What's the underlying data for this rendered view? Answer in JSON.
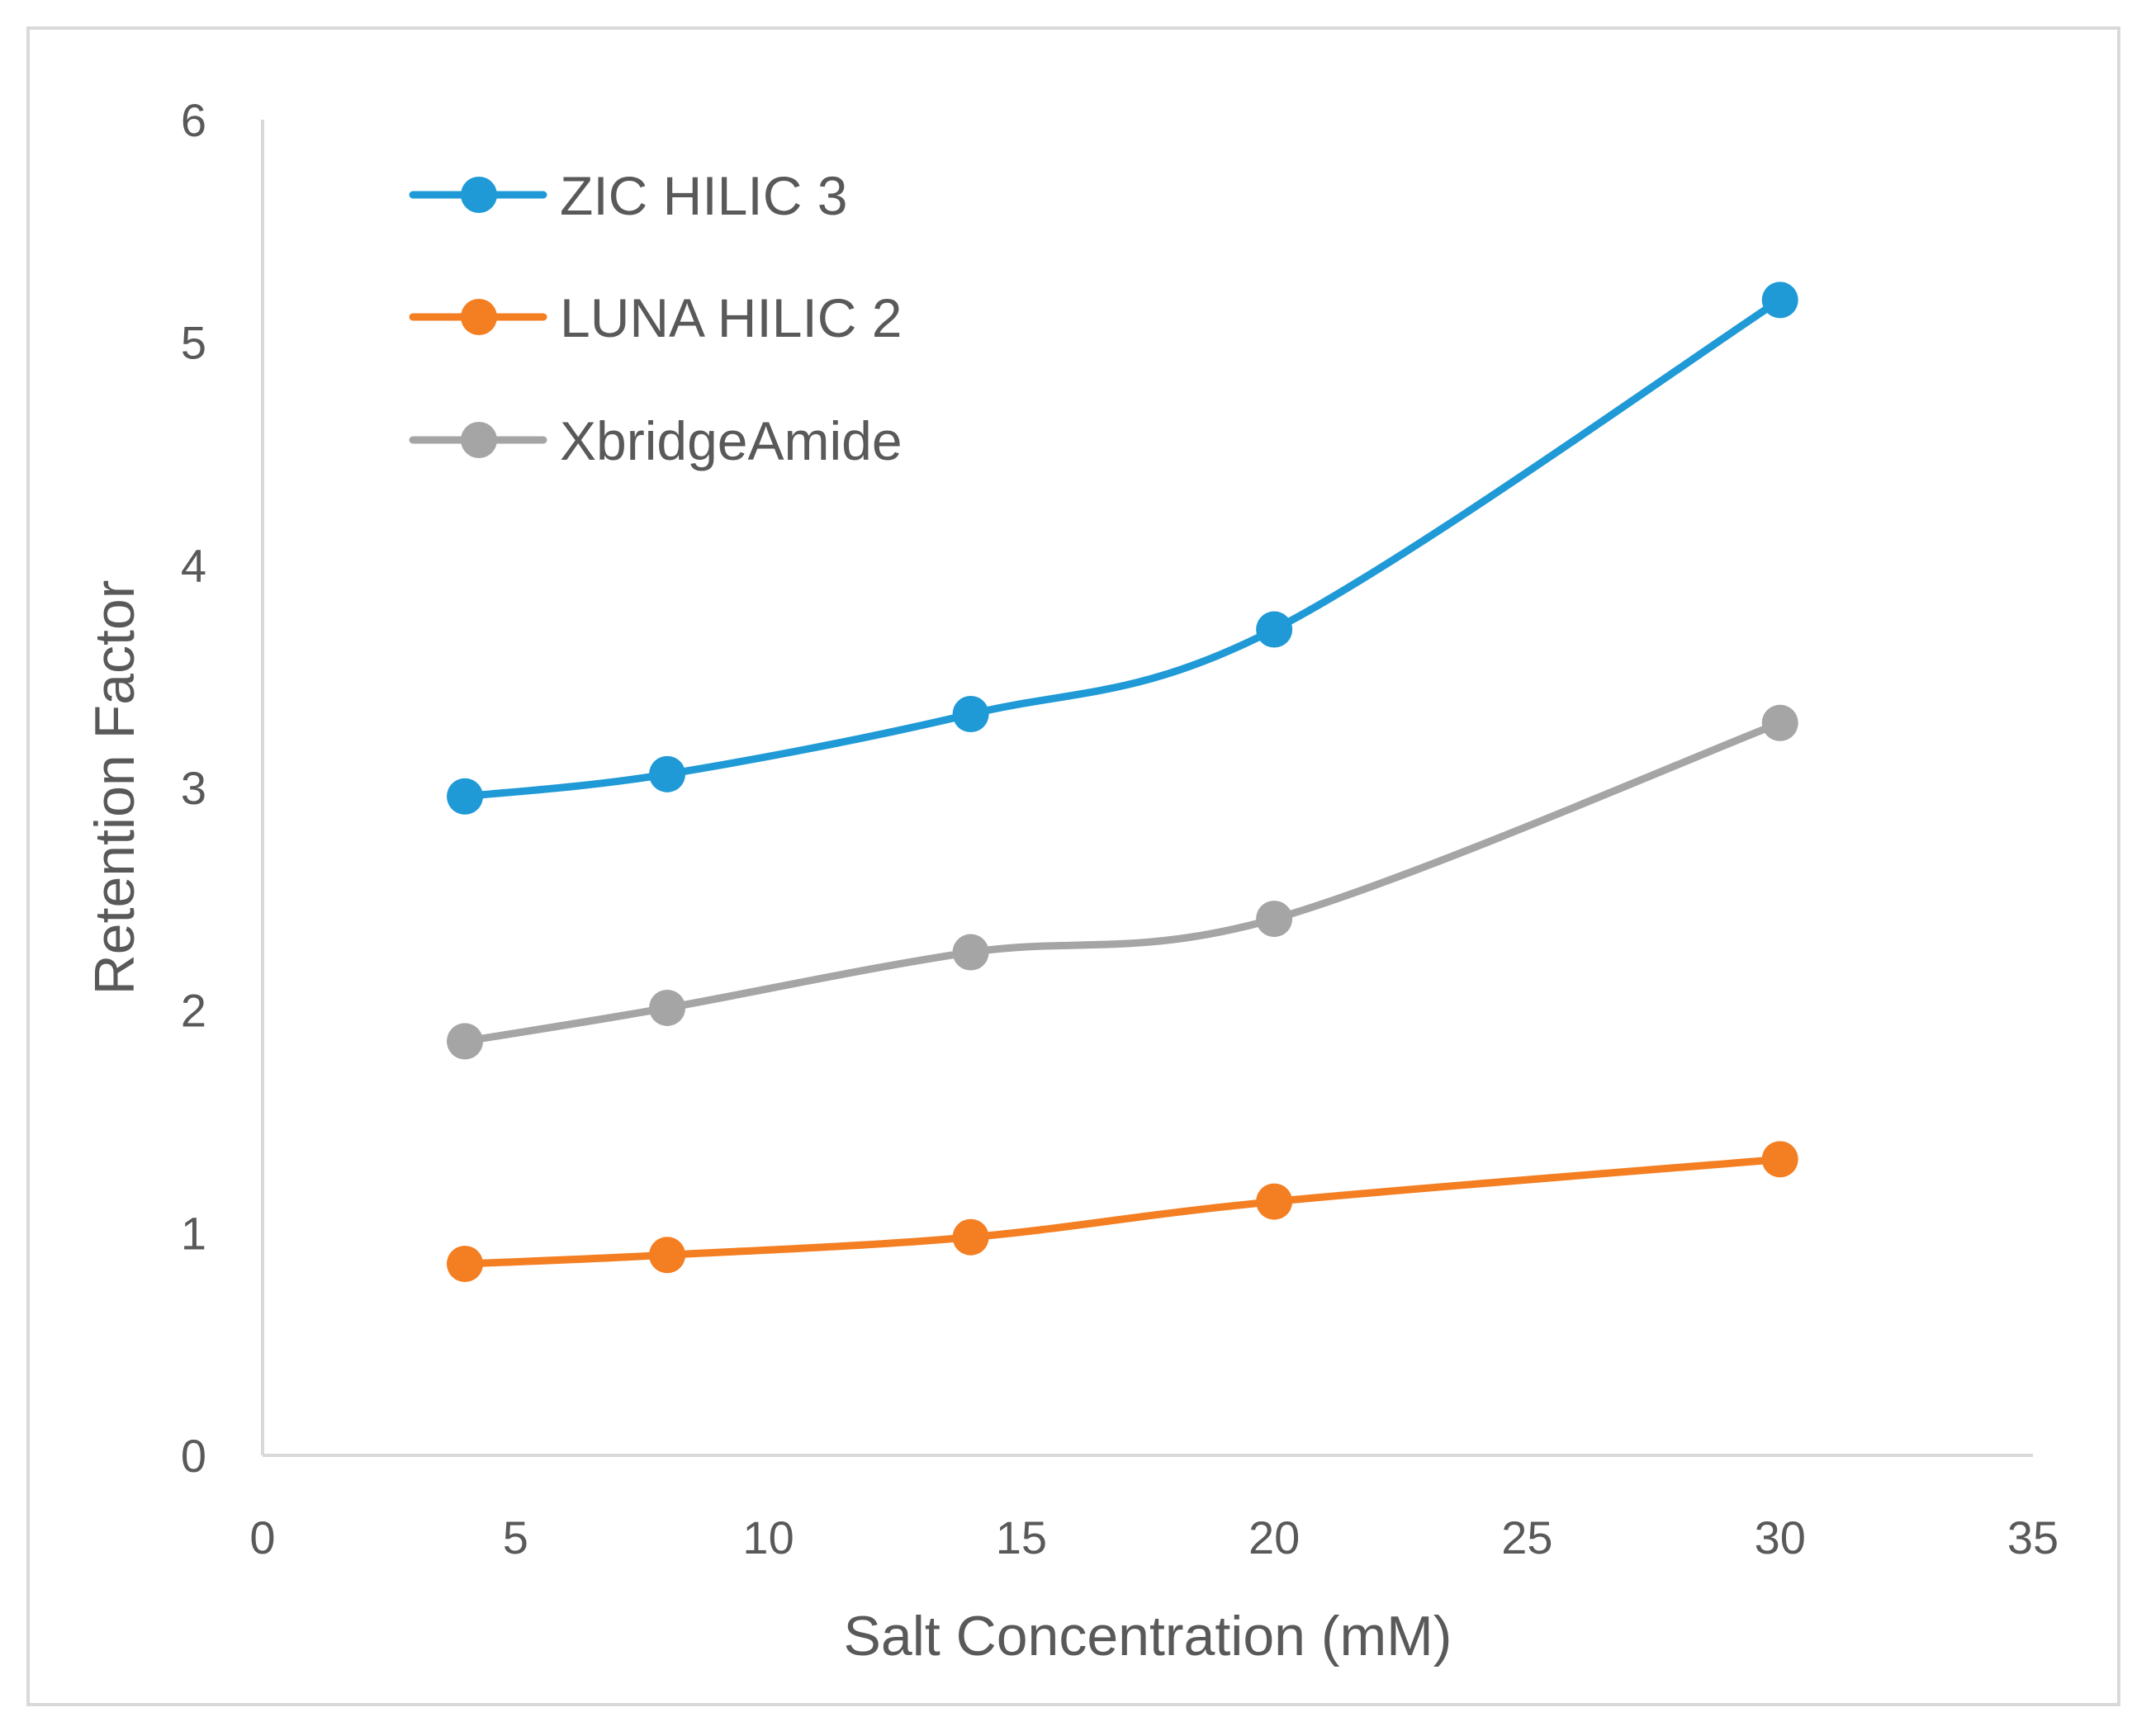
{
  "chart_data": {
    "type": "line",
    "title": "",
    "xlabel": "Salt Concentration (mM)",
    "ylabel": "Retention Factor",
    "xlim": [
      0,
      35
    ],
    "ylim": [
      0,
      6
    ],
    "xticks": [
      0,
      5,
      10,
      15,
      20,
      25,
      30,
      35
    ],
    "yticks": [
      0,
      1,
      2,
      3,
      4,
      5,
      6
    ],
    "grid": false,
    "legend_position": "top-left",
    "smooth_lines": true,
    "series": [
      {
        "name": "ZIC HILIC 3",
        "color": "#1f9ad6",
        "x": [
          4,
          8,
          14,
          20,
          30
        ],
        "y": [
          2.96,
          3.06,
          3.33,
          3.71,
          5.19
        ]
      },
      {
        "name": "LUNA HILIC 2",
        "color": "#f47e22",
        "x": [
          4,
          8,
          14,
          20,
          30
        ],
        "y": [
          0.86,
          0.9,
          0.98,
          1.14,
          1.33
        ]
      },
      {
        "name": "XbridgeAmide",
        "color": "#a5a5a5",
        "x": [
          4,
          8,
          14,
          20,
          30
        ],
        "y": [
          1.86,
          2.01,
          2.26,
          2.41,
          3.29
        ]
      }
    ]
  }
}
